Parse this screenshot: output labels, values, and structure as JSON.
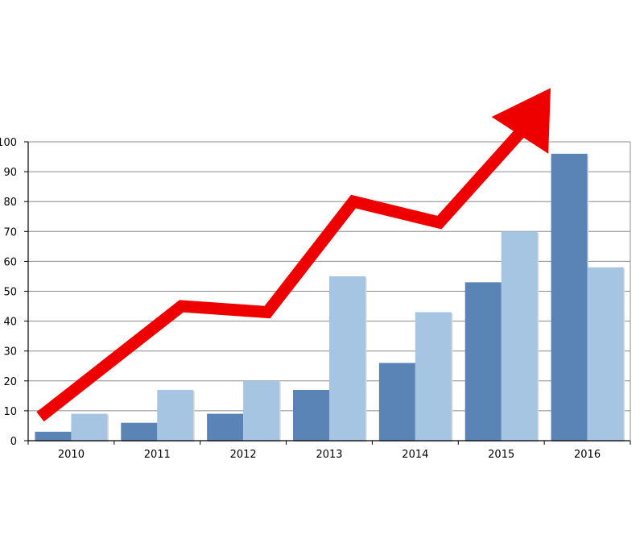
{
  "chart_data": {
    "type": "bar",
    "categories": [
      "2010",
      "2011",
      "2012",
      "2013",
      "2014",
      "2015",
      "2016"
    ],
    "series": [
      {
        "values": [
          3,
          6,
          9,
          17,
          26,
          53,
          96
        ],
        "color": "#5b84b6"
      },
      {
        "values": [
          9,
          17,
          20,
          55,
          43,
          70,
          58
        ],
        "color": "#a6c5e2"
      }
    ],
    "yticks": [
      "0",
      "10",
      "20",
      "30",
      "40",
      "50",
      "60",
      "70",
      "80",
      "90",
      "100"
    ],
    "ylim": [
      0,
      100
    ],
    "grid": true,
    "legend": "none",
    "overlay": {
      "type": "trend-arrow",
      "color": "#ee0000",
      "points": [
        [
          2010,
          8
        ],
        [
          2011,
          45
        ],
        [
          2012,
          43
        ],
        [
          2013,
          80
        ],
        [
          2014,
          73
        ],
        [
          2015,
          105
        ],
        [
          2016,
          118
        ]
      ]
    }
  }
}
